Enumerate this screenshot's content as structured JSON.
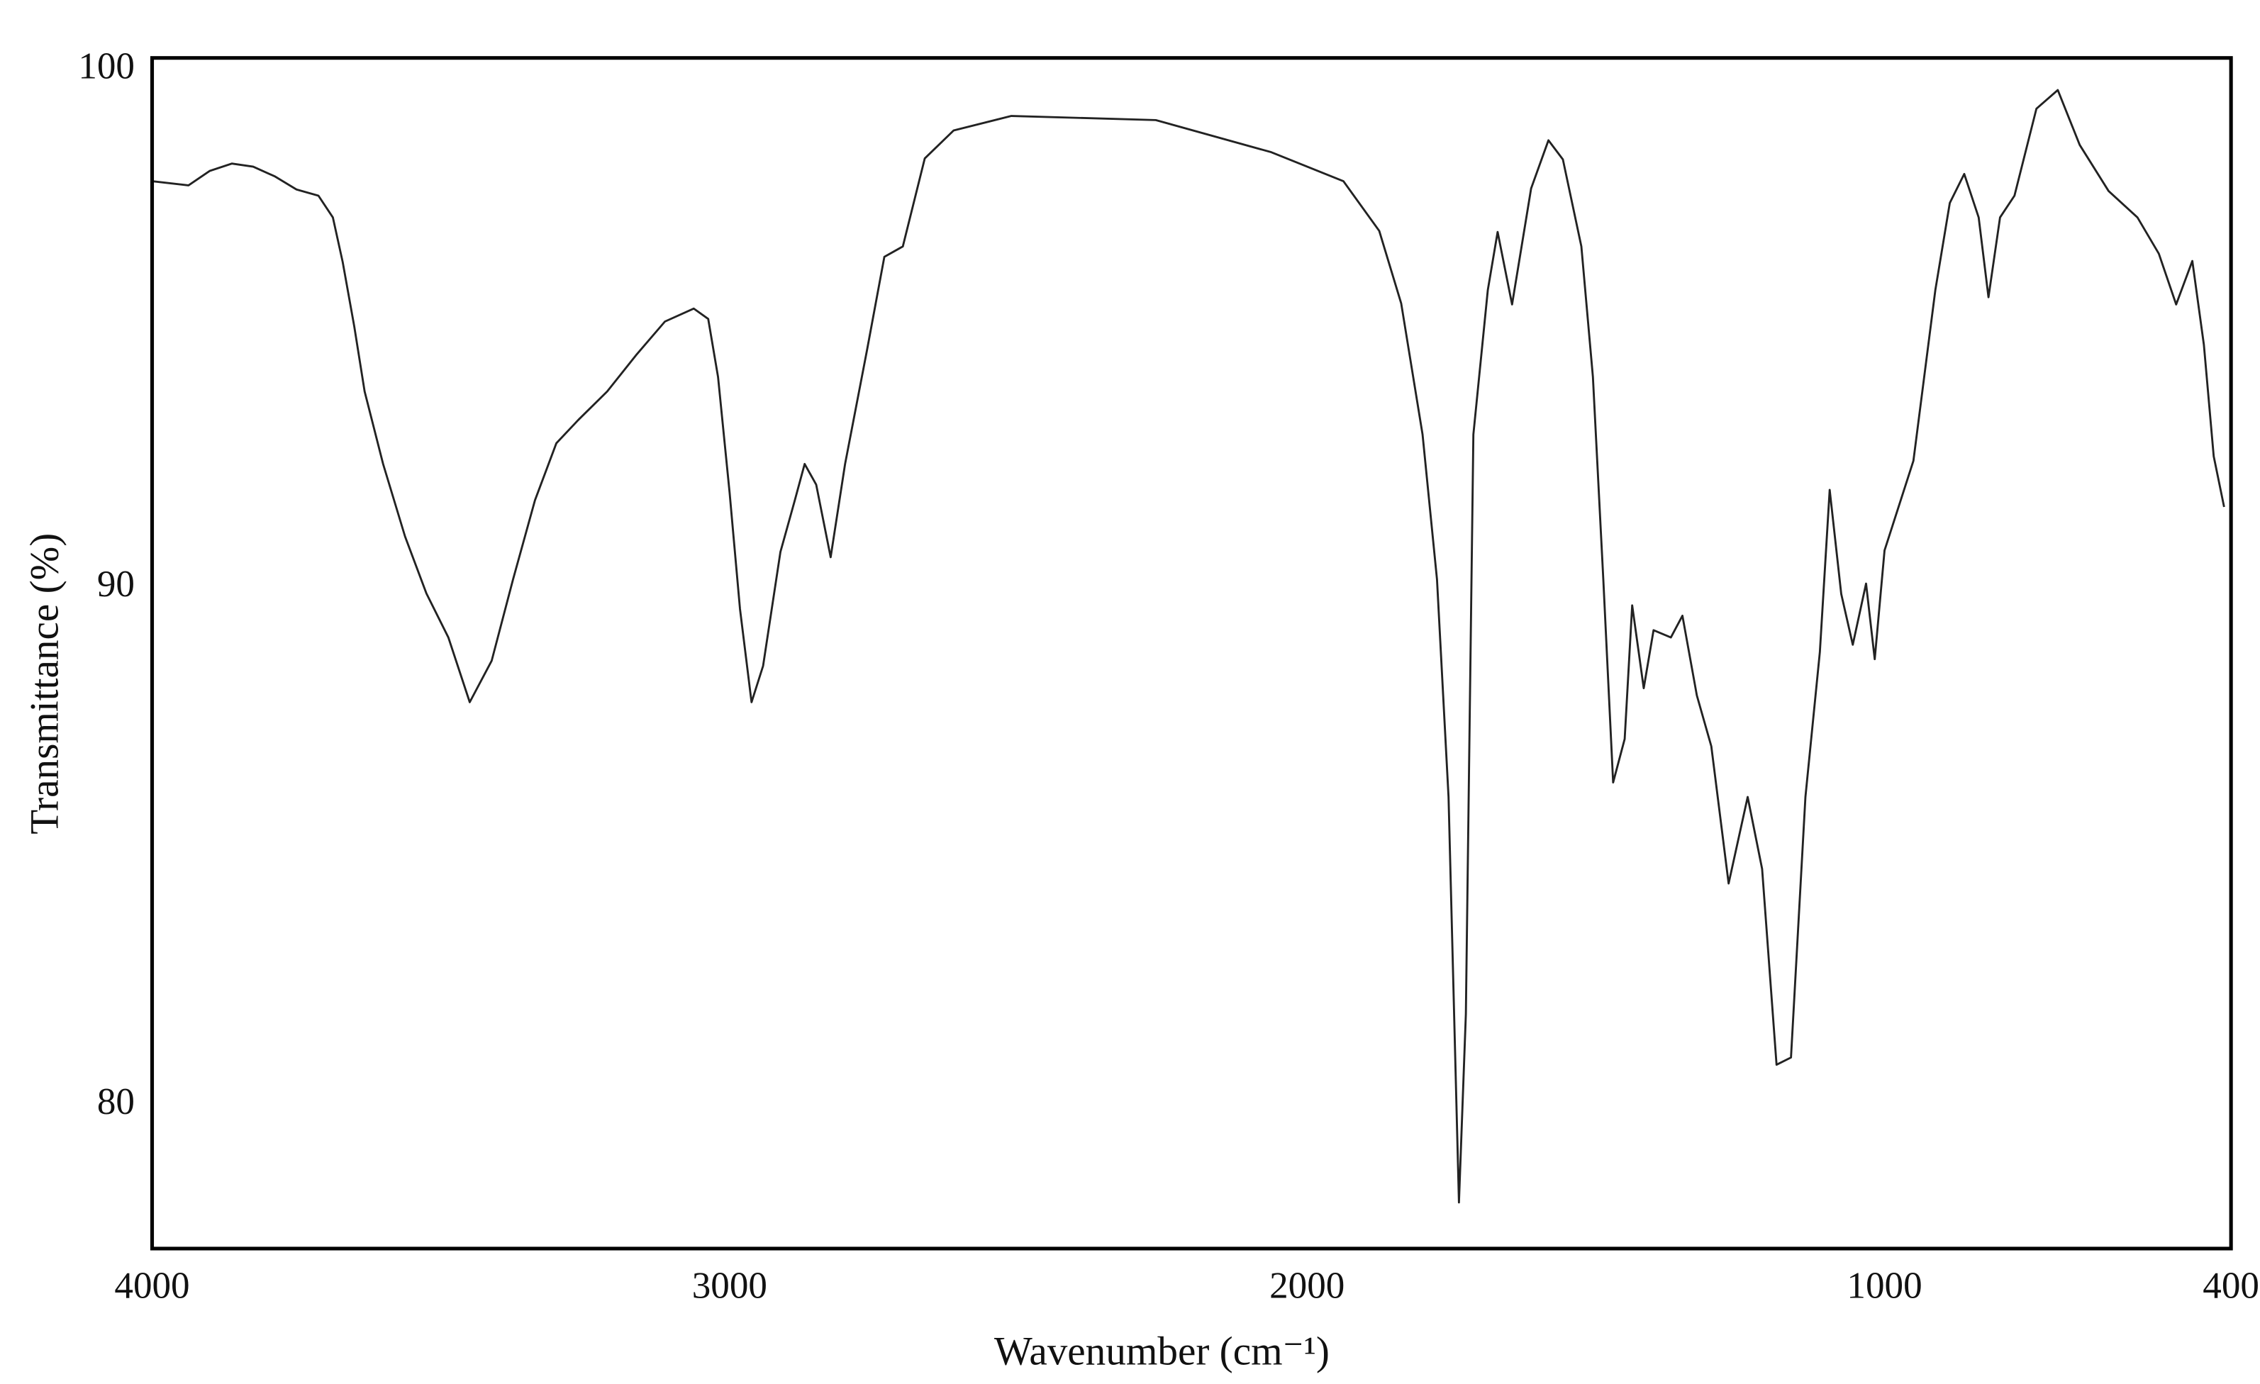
{
  "chart_data": {
    "type": "line",
    "xlabel": "Wavenumber (cm⁻¹)",
    "ylabel": "Transmittance (%)",
    "color": "#222222",
    "xlim": [
      4000,
      400
    ],
    "ylim": [
      77.15,
      100.14
    ],
    "xticks": [
      4000,
      3000,
      2000,
      1000,
      400
    ],
    "yticks": [
      80,
      90,
      100
    ],
    "x": [
      4000,
      3937,
      3900,
      3862,
      3825,
      3787,
      3750,
      3712,
      3687,
      3670,
      3650,
      3632,
      3600,
      3562,
      3525,
      3487,
      3450,
      3412,
      3375,
      3337,
      3300,
      3262,
      3212,
      3162,
      3112,
      3062,
      3037,
      3020,
      3000,
      2982,
      2962,
      2942,
      2912,
      2887,
      2870,
      2850,
      2825,
      2800,
      2762,
      2732,
      2700,
      2662,
      2612,
      2512,
      2262,
      2062,
      1937,
      1875,
      1837,
      1800,
      1775,
      1755,
      1737,
      1725,
      1712,
      1687,
      1670,
      1645,
      1612,
      1582,
      1557,
      1525,
      1505,
      1487,
      1470,
      1450,
      1437,
      1417,
      1400,
      1370,
      1350,
      1325,
      1300,
      1270,
      1237,
      1212,
      1187,
      1162,
      1137,
      1112,
      1095,
      1075,
      1055,
      1032,
      1017,
      1000,
      950,
      912,
      887,
      862,
      837,
      820,
      800,
      775,
      737,
      700,
      662,
      612,
      562,
      525,
      495,
      467,
      447,
      430,
      412
    ],
    "values": [
      97.76,
      97.68,
      97.96,
      98.1,
      98.04,
      97.85,
      97.6,
      97.48,
      97.06,
      96.2,
      94.96,
      93.7,
      92.3,
      90.9,
      89.8,
      88.95,
      87.7,
      88.5,
      90.07,
      91.6,
      92.7,
      93.15,
      93.7,
      94.4,
      95.05,
      95.3,
      95.1,
      93.98,
      91.75,
      89.5,
      87.7,
      88.4,
      90.6,
      91.6,
      92.3,
      91.9,
      90.5,
      92.3,
      94.5,
      96.3,
      96.5,
      98.2,
      98.74,
      99.02,
      98.94,
      98.32,
      97.76,
      96.8,
      95.4,
      92.87,
      90.07,
      85.87,
      78.04,
      81.68,
      92.87,
      95.66,
      96.78,
      95.38,
      97.62,
      98.55,
      98.18,
      96.5,
      93.98,
      90.07,
      86.15,
      86.99,
      89.57,
      87.97,
      89.09,
      88.95,
      89.37,
      87.83,
      86.85,
      84.2,
      85.87,
      84.48,
      80.7,
      80.84,
      85.87,
      88.67,
      91.8,
      89.79,
      88.81,
      89.99,
      88.53,
      90.63,
      92.36,
      95.66,
      97.34,
      97.9,
      97.06,
      95.52,
      97.06,
      97.48,
      99.16,
      99.52,
      98.46,
      97.57,
      97.06,
      96.36,
      95.38,
      96.22,
      94.6,
      92.45,
      91.47
    ]
  }
}
